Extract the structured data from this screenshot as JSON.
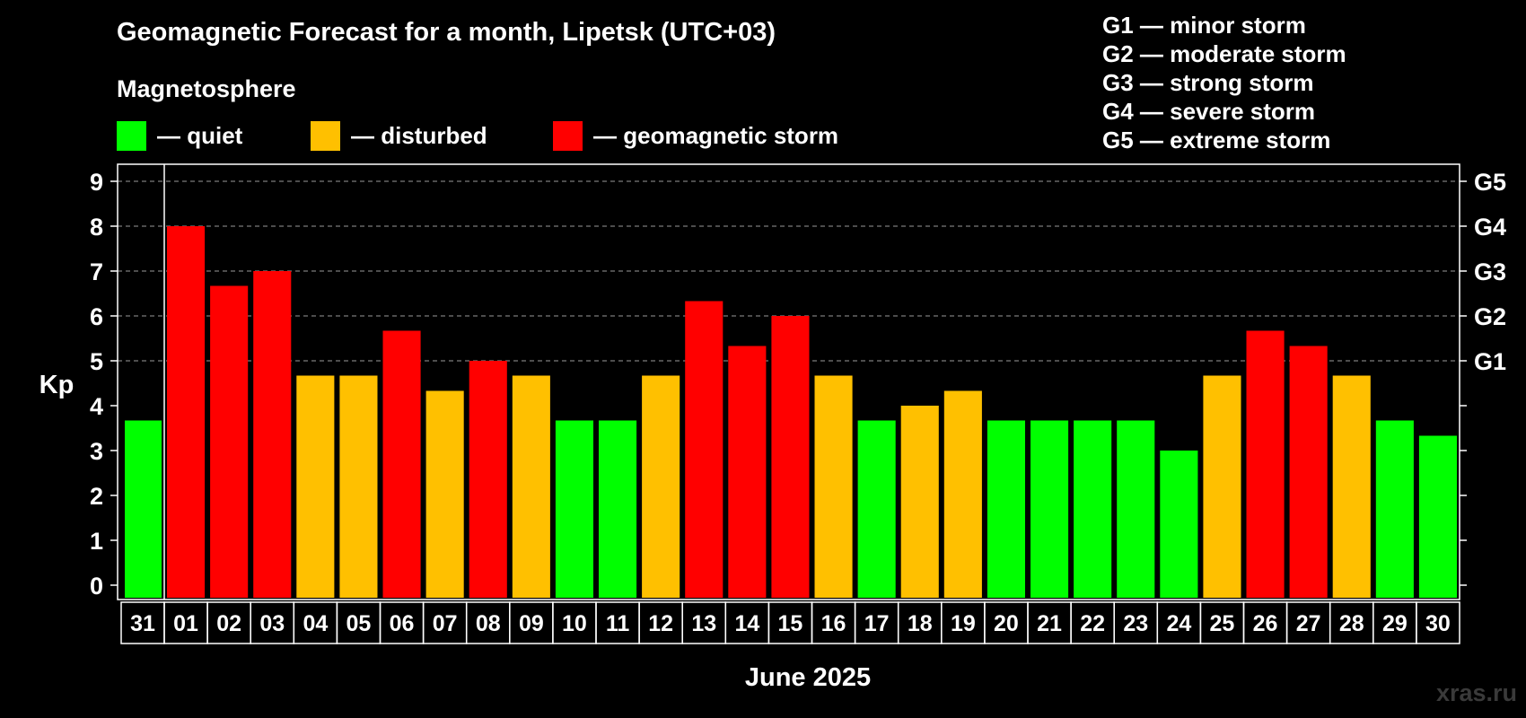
{
  "chart_data": {
    "type": "bar",
    "title": "Geomagnetic Forecast for a month, Lipetsk (UTC+03)",
    "subtitle": "Magnetosphere",
    "xlabel": "June 2025",
    "ylabel": "Kp",
    "ylim": [
      0,
      9
    ],
    "yticks": [
      "0",
      "1",
      "2",
      "3",
      "4",
      "5",
      "6",
      "7",
      "8",
      "9"
    ],
    "right_axis_ticks": [
      {
        "kp": 5,
        "label": "G1"
      },
      {
        "kp": 6,
        "label": "G2"
      },
      {
        "kp": 7,
        "label": "G3"
      },
      {
        "kp": 8,
        "label": "G4"
      },
      {
        "kp": 9,
        "label": "G5"
      }
    ],
    "categories": [
      "31",
      "01",
      "02",
      "03",
      "04",
      "05",
      "06",
      "07",
      "08",
      "09",
      "10",
      "11",
      "12",
      "13",
      "14",
      "15",
      "16",
      "17",
      "18",
      "19",
      "20",
      "21",
      "22",
      "23",
      "24",
      "25",
      "26",
      "27",
      "28",
      "29",
      "30"
    ],
    "values": [
      3.67,
      8.0,
      6.67,
      7.0,
      4.67,
      4.67,
      5.67,
      4.33,
      5.0,
      4.67,
      3.67,
      3.67,
      4.67,
      6.33,
      5.33,
      6.0,
      4.67,
      3.67,
      4.0,
      4.33,
      3.67,
      3.67,
      3.67,
      3.67,
      3.0,
      4.67,
      5.67,
      5.33,
      4.67,
      3.67,
      3.33
    ],
    "status": [
      "quiet",
      "storm",
      "storm",
      "storm",
      "disturbed",
      "disturbed",
      "storm",
      "disturbed",
      "storm",
      "disturbed",
      "quiet",
      "quiet",
      "disturbed",
      "storm",
      "storm",
      "storm",
      "disturbed",
      "quiet",
      "disturbed",
      "disturbed",
      "quiet",
      "quiet",
      "quiet",
      "quiet",
      "quiet",
      "disturbed",
      "storm",
      "storm",
      "disturbed",
      "quiet",
      "quiet"
    ],
    "colors": {
      "quiet": "#00ff00",
      "disturbed": "#ffc000",
      "storm": "#ff0000"
    },
    "legend": [
      {
        "key": "quiet",
        "label": "— quiet"
      },
      {
        "key": "disturbed",
        "label": "— disturbed"
      },
      {
        "key": "storm",
        "label": "— geomagnetic storm"
      }
    ],
    "g_scale": [
      "G1 — minor storm",
      "G2 — moderate storm",
      "G3 — strong storm",
      "G4 — severe storm",
      "G5 — extreme storm"
    ],
    "grid": true
  },
  "watermark": "xras.ru"
}
